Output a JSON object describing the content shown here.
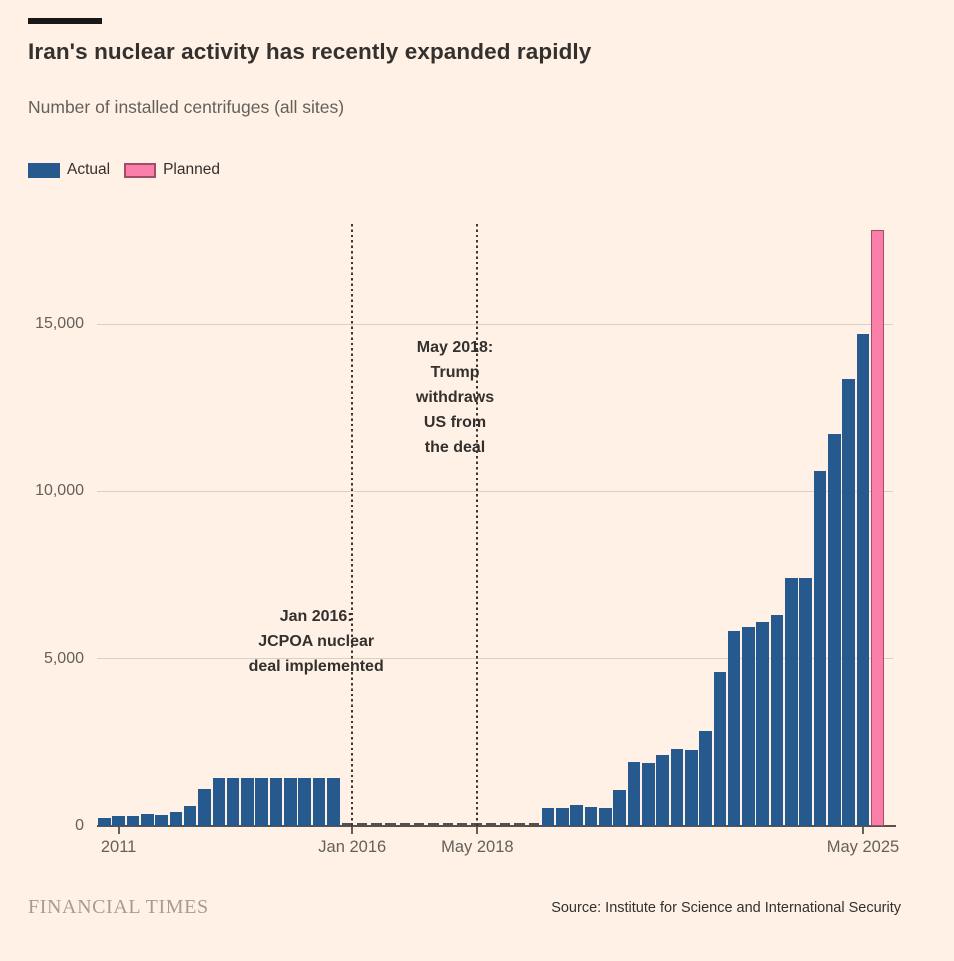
{
  "colors": {
    "background": "#fff1e5",
    "actual_bar": "#26598e",
    "planned_bar_fill": "#f97fa8",
    "planned_bar_border": "#a34d68",
    "near_zero_dash": "#54504b",
    "gridline": "#ddd0c2",
    "axis_line": "#57524d",
    "text_dark": "#33302e",
    "text_muted": "#66605b",
    "brand_text": "#a99c8f"
  },
  "chart_data": {
    "type": "bar",
    "title": "Iran's nuclear activity has recently expanded rapidly",
    "subtitle": "Number of installed centrifuges (all sites)",
    "brand": "FINANCIAL TIMES",
    "source": "Source: Institute for Science and International Security",
    "ylabel": "",
    "xlabel": "",
    "ylim": [
      0,
      18300
    ],
    "grid": "horizontal",
    "legend_position": "top-left",
    "legend": [
      {
        "label": "Actual",
        "series": "actual"
      },
      {
        "label": "Planned",
        "series": "planned"
      }
    ],
    "yticks": [
      {
        "value": 0,
        "label": "0"
      },
      {
        "value": 5000,
        "label": "5,000"
      },
      {
        "value": 10000,
        "label": "10,000"
      },
      {
        "value": 15000,
        "label": "15,000"
      }
    ],
    "xticks": [
      {
        "label": "2011",
        "index": 1,
        "rule": false
      },
      {
        "label": "Jan 2016",
        "index": 17.32,
        "rule": true
      },
      {
        "label": "May 2018",
        "index": 26.06,
        "rule": true
      },
      {
        "label": "May 2025",
        "index": 53,
        "rule": false
      }
    ],
    "bars": [
      {
        "v": 250,
        "s": "actual"
      },
      {
        "v": 300,
        "s": "actual"
      },
      {
        "v": 290,
        "s": "actual"
      },
      {
        "v": 360,
        "s": "actual"
      },
      {
        "v": 340,
        "s": "actual"
      },
      {
        "v": 430,
        "s": "actual"
      },
      {
        "v": 600,
        "s": "actual"
      },
      {
        "v": 1100,
        "s": "actual"
      },
      {
        "v": 1430,
        "s": "actual"
      },
      {
        "v": 1430,
        "s": "actual"
      },
      {
        "v": 1430,
        "s": "actual"
      },
      {
        "v": 1430,
        "s": "actual"
      },
      {
        "v": 1430,
        "s": "actual"
      },
      {
        "v": 1430,
        "s": "actual"
      },
      {
        "v": 1430,
        "s": "actual"
      },
      {
        "v": 1430,
        "s": "actual"
      },
      {
        "v": 1430,
        "s": "actual"
      },
      {
        "v": 80,
        "s": "actual"
      },
      {
        "v": 80,
        "s": "actual"
      },
      {
        "v": 80,
        "s": "actual"
      },
      {
        "v": 80,
        "s": "actual"
      },
      {
        "v": 80,
        "s": "actual"
      },
      {
        "v": 80,
        "s": "actual"
      },
      {
        "v": 80,
        "s": "actual"
      },
      {
        "v": 80,
        "s": "actual"
      },
      {
        "v": 80,
        "s": "actual"
      },
      {
        "v": 80,
        "s": "actual"
      },
      {
        "v": 80,
        "s": "actual"
      },
      {
        "v": 80,
        "s": "actual"
      },
      {
        "v": 80,
        "s": "actual"
      },
      {
        "v": 80,
        "s": "actual"
      },
      {
        "v": 540,
        "s": "actual"
      },
      {
        "v": 540,
        "s": "actual"
      },
      {
        "v": 620,
        "s": "actual"
      },
      {
        "v": 570,
        "s": "actual"
      },
      {
        "v": 540,
        "s": "actual"
      },
      {
        "v": 1080,
        "s": "actual"
      },
      {
        "v": 1900,
        "s": "actual"
      },
      {
        "v": 1890,
        "s": "actual"
      },
      {
        "v": 2130,
        "s": "actual"
      },
      {
        "v": 2300,
        "s": "actual"
      },
      {
        "v": 2270,
        "s": "actual"
      },
      {
        "v": 2830,
        "s": "actual"
      },
      {
        "v": 4600,
        "s": "actual"
      },
      {
        "v": 5820,
        "s": "actual"
      },
      {
        "v": 5950,
        "s": "actual"
      },
      {
        "v": 6100,
        "s": "actual"
      },
      {
        "v": 6300,
        "s": "actual"
      },
      {
        "v": 7400,
        "s": "actual"
      },
      {
        "v": 7400,
        "s": "actual"
      },
      {
        "v": 10600,
        "s": "actual"
      },
      {
        "v": 11700,
        "s": "actual"
      },
      {
        "v": 13350,
        "s": "actual"
      },
      {
        "v": 14700,
        "s": "actual"
      },
      {
        "v": 17800,
        "s": "planned"
      }
    ],
    "annotations": [
      {
        "lines": [
          "Jan 2016:",
          "JCPOA nuclear",
          "deal implemented"
        ],
        "text_center_index": 14.8,
        "text_top": 389
      },
      {
        "lines": [
          "May 2018:",
          "Trump",
          "withdraws",
          "US from",
          "the deal"
        ],
        "text_center_index": 24.5,
        "text_top": 120
      }
    ]
  }
}
